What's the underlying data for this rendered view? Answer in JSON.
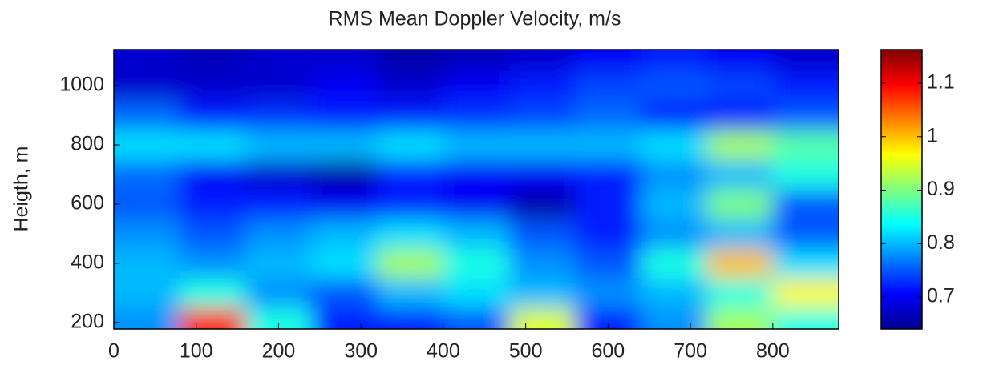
{
  "chart_data": {
    "type": "heatmap",
    "title": "RMS Mean Doppler Velocity, m/s",
    "ylabel": "Heigth, m",
    "x": [
      40,
      120,
      200,
      280,
      360,
      440,
      520,
      600,
      680,
      760,
      840
    ],
    "y": [
      200,
      300,
      400,
      500,
      600,
      700,
      800,
      900,
      1000,
      1100
    ],
    "z": [
      [
        0.78,
        1.08,
        0.85,
        0.72,
        0.72,
        0.75,
        0.95,
        0.72,
        0.78,
        0.92,
        0.85
      ],
      [
        0.8,
        0.85,
        0.78,
        0.75,
        0.8,
        0.82,
        0.8,
        0.78,
        0.8,
        0.85,
        0.97
      ],
      [
        0.8,
        0.78,
        0.8,
        0.82,
        0.92,
        0.85,
        0.78,
        0.75,
        0.85,
        1.0,
        0.82
      ],
      [
        0.78,
        0.75,
        0.78,
        0.8,
        0.82,
        0.8,
        0.75,
        0.72,
        0.78,
        0.8,
        0.75
      ],
      [
        0.75,
        0.72,
        0.72,
        0.7,
        0.72,
        0.7,
        0.66,
        0.72,
        0.8,
        0.9,
        0.75
      ],
      [
        0.76,
        0.7,
        0.68,
        0.66,
        0.72,
        0.7,
        0.7,
        0.72,
        0.78,
        0.8,
        0.85
      ],
      [
        0.82,
        0.82,
        0.8,
        0.8,
        0.82,
        0.8,
        0.8,
        0.8,
        0.82,
        0.92,
        0.88
      ],
      [
        0.76,
        0.72,
        0.73,
        0.72,
        0.72,
        0.73,
        0.74,
        0.76,
        0.72,
        0.72,
        0.75
      ],
      [
        0.68,
        0.68,
        0.68,
        0.7,
        0.68,
        0.7,
        0.72,
        0.74,
        0.75,
        0.74,
        0.72
      ],
      [
        0.68,
        0.67,
        0.68,
        0.68,
        0.66,
        0.67,
        0.68,
        0.7,
        0.72,
        0.7,
        0.68
      ]
    ],
    "xlim": [
      0,
      880
    ],
    "xticks": [
      0,
      100,
      200,
      300,
      400,
      500,
      600,
      700,
      800
    ],
    "ylim": [
      178,
      1122
    ],
    "yticks": [
      200,
      400,
      600,
      800,
      1000
    ],
    "clim": [
      0.64,
      1.163
    ],
    "cticks": [
      0.7,
      0.8,
      0.9,
      1,
      1.1
    ],
    "colormap": "jet"
  }
}
